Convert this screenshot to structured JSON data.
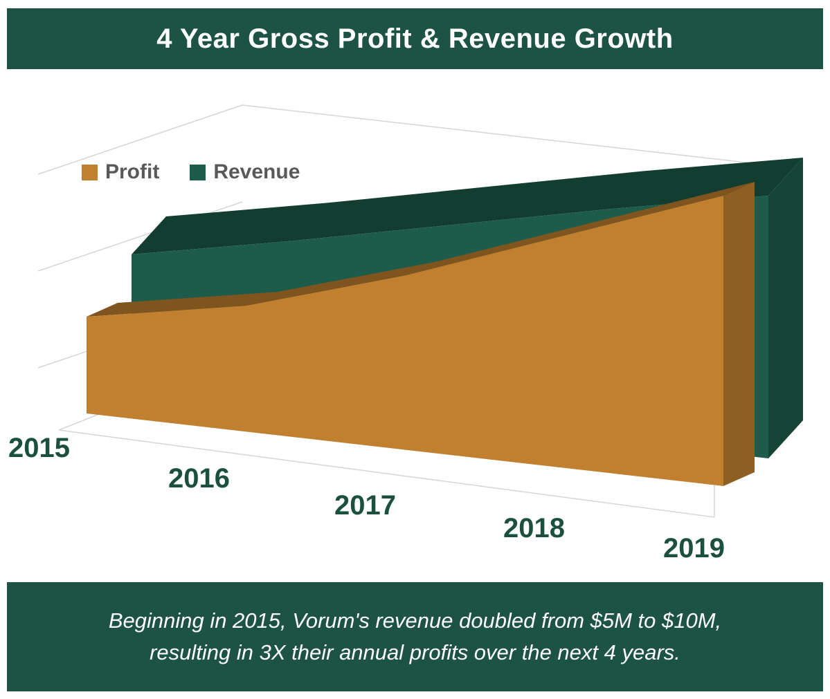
{
  "header": {
    "title": "4 Year Gross Profit & Revenue Growth"
  },
  "chart_data": {
    "type": "area",
    "style": "3d-perspective",
    "title": "4 Year Gross Profit & Revenue Growth",
    "categories": [
      "2015",
      "2016",
      "2017",
      "2018",
      "2019"
    ],
    "series": [
      {
        "name": "Profit",
        "color": "#c0802f",
        "values": [
          2,
          2.6,
          3.6,
          4.8,
          6
        ]
      },
      {
        "name": "Revenue",
        "color": "#1d5c4a",
        "values": [
          5,
          6.2,
          7.5,
          8.8,
          10
        ]
      }
    ],
    "value_unit": "$M",
    "legend_position": "top-left",
    "x_axis": {
      "labels_visible": true
    },
    "y_axis": {
      "labels_visible": false
    },
    "grid": "perspective-floor-and-wall"
  },
  "footer": {
    "line1": "Beginning in 2015, Vorum's revenue doubled from $5M to $10M,",
    "line2": "resulting in 3X their annual profits over the next 4 years."
  },
  "colors": {
    "banner_bg": "#1d5345",
    "banner_text": "#ffffff",
    "profit": "#c0802f",
    "revenue": "#1d5c4a",
    "axis_labels": "#1b5041",
    "legend_text": "#595959",
    "gridline": "#d6d6d6"
  }
}
